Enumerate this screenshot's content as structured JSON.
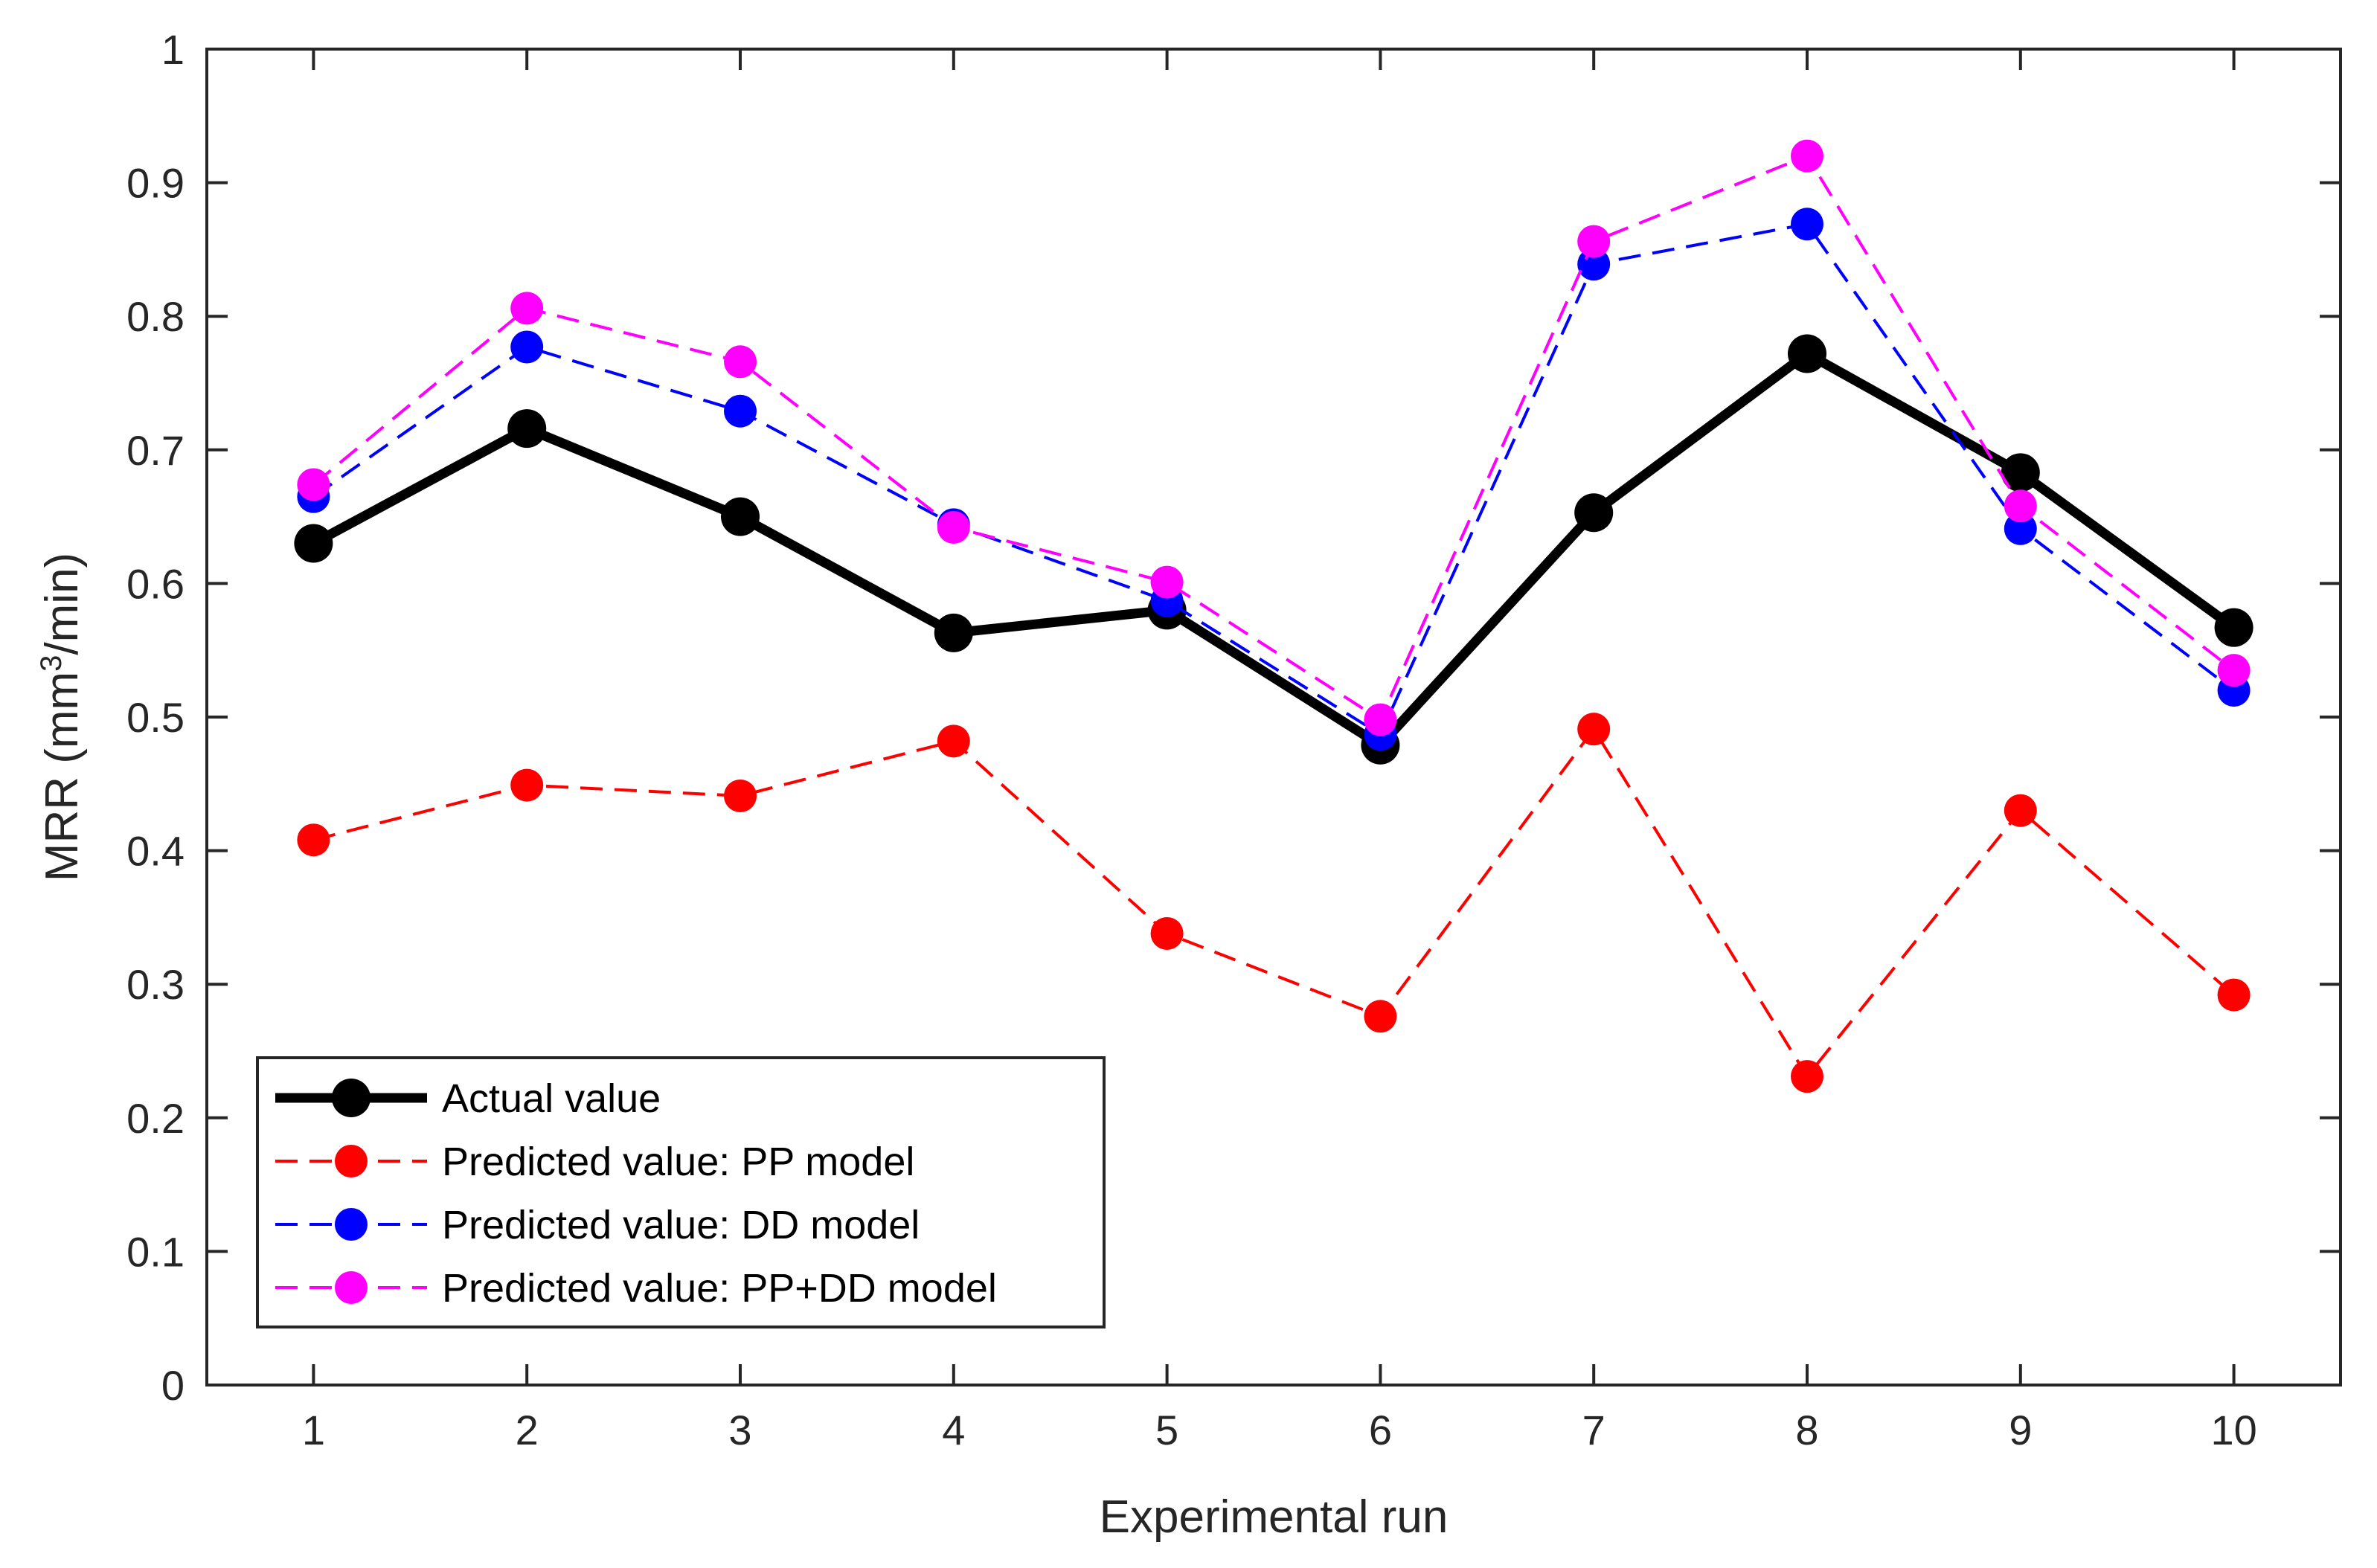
{
  "chart_data": {
    "type": "line",
    "xlabel": "Experimental run",
    "ylabel": "MRR (mm",
    "ylabel_sup": "3",
    "ylabel_tail": "/min)",
    "x": [
      1,
      2,
      3,
      4,
      5,
      6,
      7,
      8,
      9,
      10
    ],
    "xticks": [
      "1",
      "2",
      "3",
      "4",
      "5",
      "6",
      "7",
      "8",
      "9",
      "10"
    ],
    "xlim": [
      0.5,
      10.5
    ],
    "ylim": [
      0,
      1
    ],
    "yticks": [
      "0",
      "0.1",
      "0.2",
      "0.3",
      "0.4",
      "0.5",
      "0.6",
      "0.7",
      "0.8",
      "0.9",
      "1"
    ],
    "grid": false,
    "legend_position": "bottom-left",
    "series": [
      {
        "name": "Actual value",
        "color": "#000000",
        "line": "solid",
        "values": [
          0.63,
          0.716,
          0.65,
          0.563,
          0.58,
          0.479,
          0.653,
          0.772,
          0.683,
          0.567
        ]
      },
      {
        "name": "Predicted value: PP model",
        "color": "#ff0000",
        "line": "dashed",
        "values": [
          0.408,
          0.449,
          0.441,
          0.482,
          0.338,
          0.276,
          0.491,
          0.231,
          0.43,
          0.292
        ]
      },
      {
        "name": "Predicted value: DD model",
        "color": "#0000ff",
        "line": "dashed",
        "values": [
          0.665,
          0.777,
          0.729,
          0.644,
          0.587,
          0.487,
          0.839,
          0.869,
          0.641,
          0.52
        ]
      },
      {
        "name": "Predicted value: PP+DD model",
        "color": "#ff00ff",
        "line": "dashed",
        "values": [
          0.674,
          0.806,
          0.766,
          0.642,
          0.601,
          0.498,
          0.856,
          0.92,
          0.658,
          0.535
        ]
      }
    ]
  }
}
